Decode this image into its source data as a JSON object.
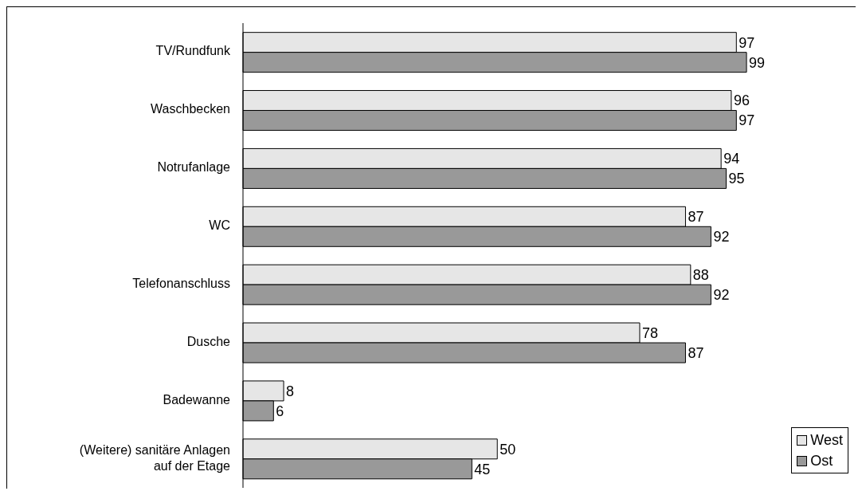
{
  "chart_data": {
    "type": "bar",
    "orientation": "horizontal",
    "data_labels": true,
    "legend": "bottom right",
    "categories": [
      "TV/Rundfunk",
      "Waschbecken",
      "Notrufanlage",
      "WC",
      "Telefonanschluss",
      "Dusche",
      "Badewanne",
      "(Weitere) sanitäre Anlagen auf der Etage"
    ],
    "series": [
      {
        "name": "West",
        "color": "#e6e6e6",
        "values": [
          97,
          96,
          94,
          87,
          88,
          78,
          8,
          50
        ]
      },
      {
        "name": "Ost",
        "color": "#999999",
        "values": [
          99,
          97,
          95,
          92,
          92,
          87,
          6,
          45
        ]
      }
    ]
  }
}
